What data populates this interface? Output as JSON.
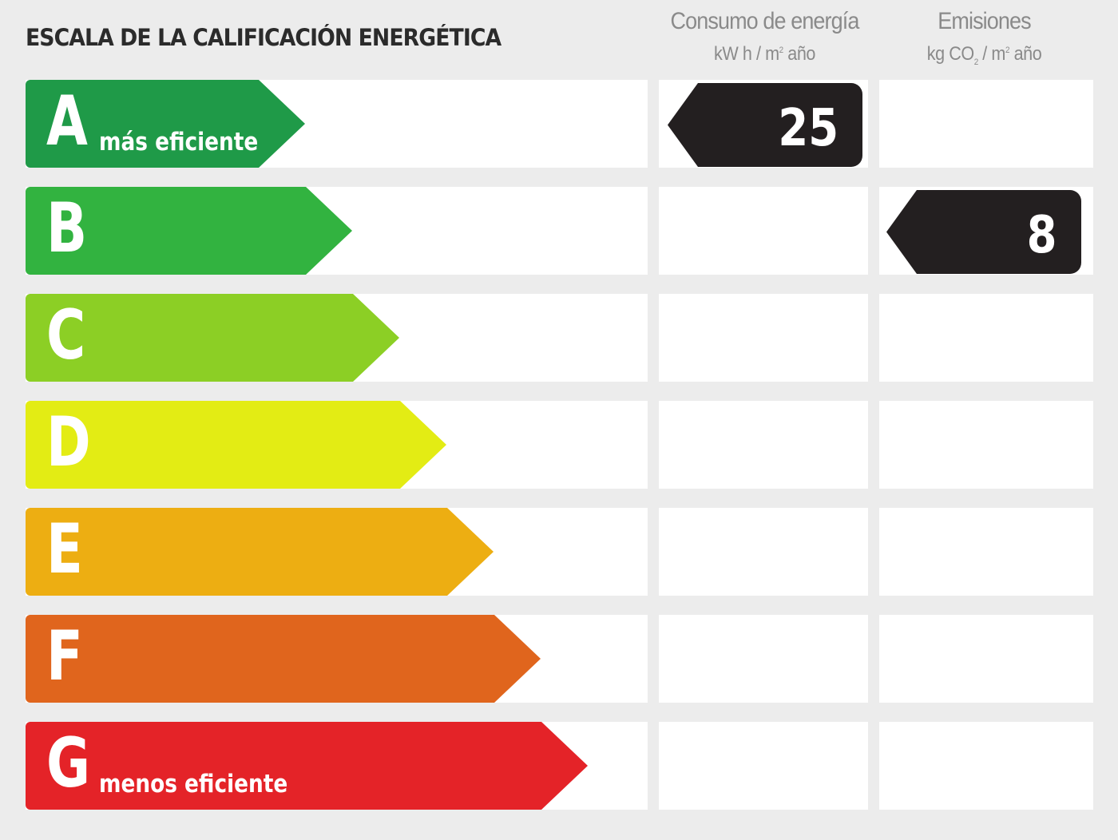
{
  "title": "ESCALA DE LA CALIFICACIÓN ENERGÉTICA",
  "columns": {
    "consumo": {
      "title": "Consumo de energía",
      "unit_main": "kW h / m",
      "unit_sup": "2",
      "unit_tail": " año"
    },
    "emisiones": {
      "title": "Emisiones",
      "unit_a": "kg CO",
      "unit_sub": "2",
      "unit_b": " / m",
      "unit_sup": "2",
      "unit_tail": " año"
    }
  },
  "ratings": [
    {
      "letter": "A",
      "caption": "más eficiente",
      "color": "#1f9a48"
    },
    {
      "letter": "B",
      "caption": "",
      "color": "#32b340"
    },
    {
      "letter": "C",
      "caption": "",
      "color": "#8ccf25"
    },
    {
      "letter": "D",
      "caption": "",
      "color": "#e3ec14"
    },
    {
      "letter": "E",
      "caption": "",
      "color": "#edae12"
    },
    {
      "letter": "F",
      "caption": "",
      "color": "#e0651d"
    },
    {
      "letter": "G",
      "caption": "menos eficiente",
      "color": "#e42328"
    }
  ],
  "values": {
    "consumo": {
      "rating": "A",
      "value": "25"
    },
    "emisiones": {
      "rating": "B",
      "value": "8"
    }
  },
  "marker_color": "#231f20"
}
